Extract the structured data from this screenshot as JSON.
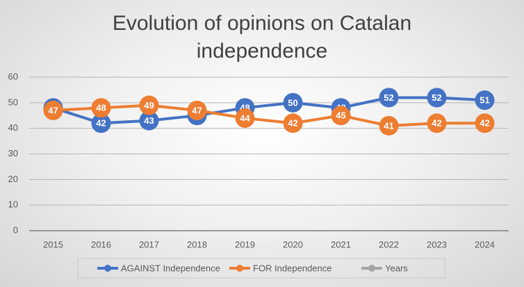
{
  "chart_data": {
    "type": "line",
    "title": "Evolution of opinions on Catalan independence",
    "categories": [
      "2015",
      "2016",
      "2017",
      "2018",
      "2019",
      "2020",
      "2021",
      "2022",
      "2023",
      "2024"
    ],
    "series": [
      {
        "name": "AGAINST Independence",
        "color": "#4472c4",
        "values": [
          48,
          42,
          43,
          45,
          48,
          50,
          48,
          52,
          52,
          51
        ]
      },
      {
        "name": "FOR Independence",
        "color": "#ed7d31",
        "values": [
          47,
          48,
          49,
          47,
          44,
          42,
          45,
          41,
          42,
          42
        ]
      },
      {
        "name": "Years",
        "color": "#a5a5a5",
        "values": [
          null,
          null,
          null,
          null,
          null,
          null,
          null,
          null,
          null,
          null
        ]
      }
    ],
    "ylim": [
      0,
      60
    ],
    "yticks": [
      0,
      10,
      20,
      30,
      40,
      50,
      60
    ],
    "grid": true,
    "data_labels": true,
    "legend": "bottom"
  }
}
